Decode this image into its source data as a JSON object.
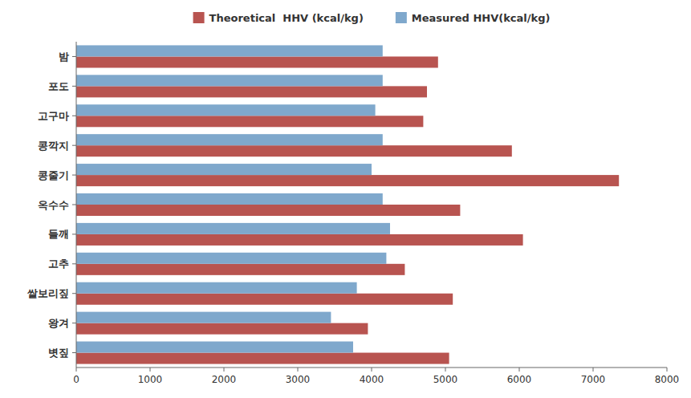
{
  "chart_data": {
    "type": "bar",
    "orientation": "horizontal",
    "categories": [
      "밤",
      "포도",
      "고구마",
      "콩깍지",
      "콩줄기",
      "옥수수",
      "들깨",
      "고추",
      "쌀보리짚",
      "왕겨",
      "볏짚"
    ],
    "series": [
      {
        "name": "Theoretical  HHV (kcal/kg)",
        "color": "#b85450",
        "values": [
          4900,
          4750,
          4700,
          5900,
          7350,
          5200,
          6050,
          4450,
          5100,
          3950,
          5050
        ]
      },
      {
        "name": "Measured HHV(kcal/kg)",
        "color": "#7fa8cc",
        "values": [
          4150,
          4150,
          4050,
          4150,
          4000,
          4150,
          4250,
          4200,
          3800,
          3450,
          3750
        ]
      }
    ],
    "xlim": [
      0,
      8000
    ],
    "xticks": [
      0,
      1000,
      2000,
      3000,
      4000,
      5000,
      6000,
      7000,
      8000
    ],
    "legend": "top",
    "grid": false
  }
}
